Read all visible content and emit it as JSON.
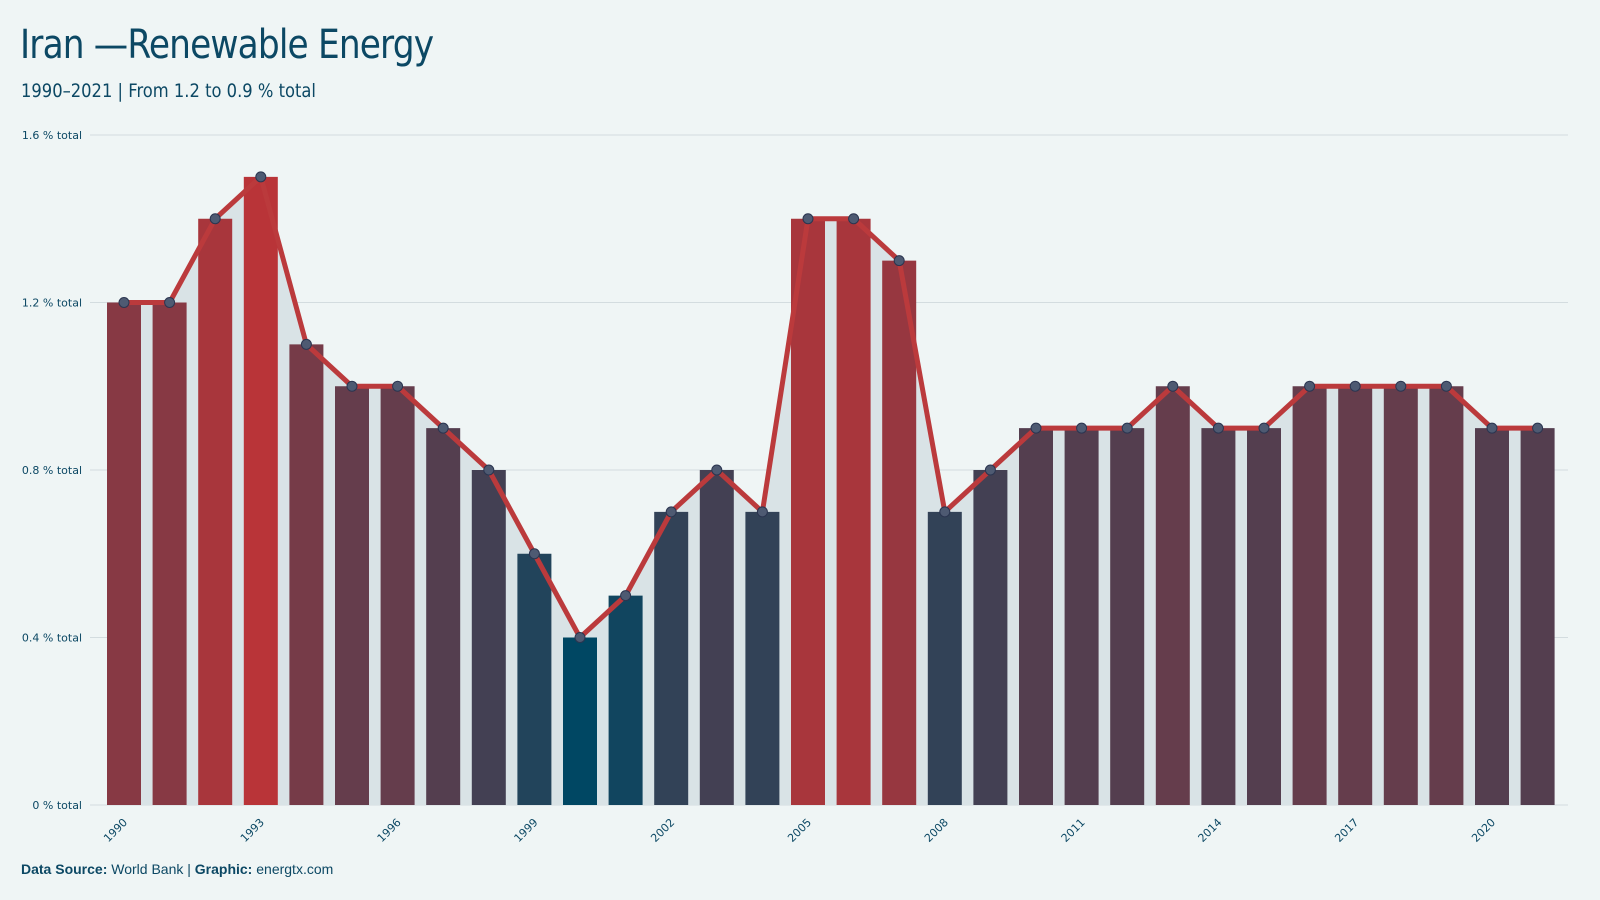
{
  "title": "Iran —Renewable Energy",
  "subtitle": "1990–2021 | From 1.2 to 0.9 % total",
  "footer": {
    "source_label": "Data Source:",
    "source_value": "World Bank",
    "separator": "|",
    "graphic_label": "Graphic:",
    "graphic_value": "energtx.com"
  },
  "chart_data": {
    "type": "bar",
    "categories": [
      "1990",
      "1991",
      "1992",
      "1993",
      "1994",
      "1995",
      "1996",
      "1997",
      "1998",
      "1999",
      "2000",
      "2001",
      "2002",
      "2003",
      "2004",
      "2005",
      "2006",
      "2007",
      "2008",
      "2009",
      "2010",
      "2011",
      "2012",
      "2013",
      "2014",
      "2015",
      "2016",
      "2017",
      "2018",
      "2019",
      "2020",
      "2021"
    ],
    "x_tick_labels": [
      "1990",
      "1993",
      "1996",
      "1999",
      "2002",
      "2005",
      "2008",
      "2011",
      "2014",
      "2017",
      "2020"
    ],
    "x_tick_years": [
      1990,
      1993,
      1996,
      1999,
      2002,
      2005,
      2008,
      2011,
      2014,
      2017,
      2020
    ],
    "values": [
      1.2,
      1.2,
      1.4,
      1.5,
      1.1,
      1.0,
      1.0,
      0.9,
      0.8,
      0.6,
      0.4,
      0.5,
      0.7,
      0.8,
      0.7,
      1.4,
      1.4,
      1.3,
      0.7,
      0.8,
      0.9,
      0.9,
      0.9,
      1.0,
      0.9,
      0.9,
      1.0,
      1.0,
      1.0,
      1.0,
      0.9,
      0.9
    ],
    "y_ticks": [
      0,
      0.4,
      0.8,
      1.2,
      1.6
    ],
    "y_tick_labels": [
      "0 % total",
      "0.4 % total",
      "0.8 % total",
      "1.2 % total",
      "1.6 % total"
    ],
    "ylim": [
      0,
      1.6
    ],
    "overlay": "line",
    "grid": true,
    "colors": {
      "low": "#004763",
      "high": "#b93438",
      "line": "#bb3a3c",
      "area": "#d9e3e6",
      "grid": "#d3dcdf",
      "marker": "#4e5a72"
    }
  }
}
